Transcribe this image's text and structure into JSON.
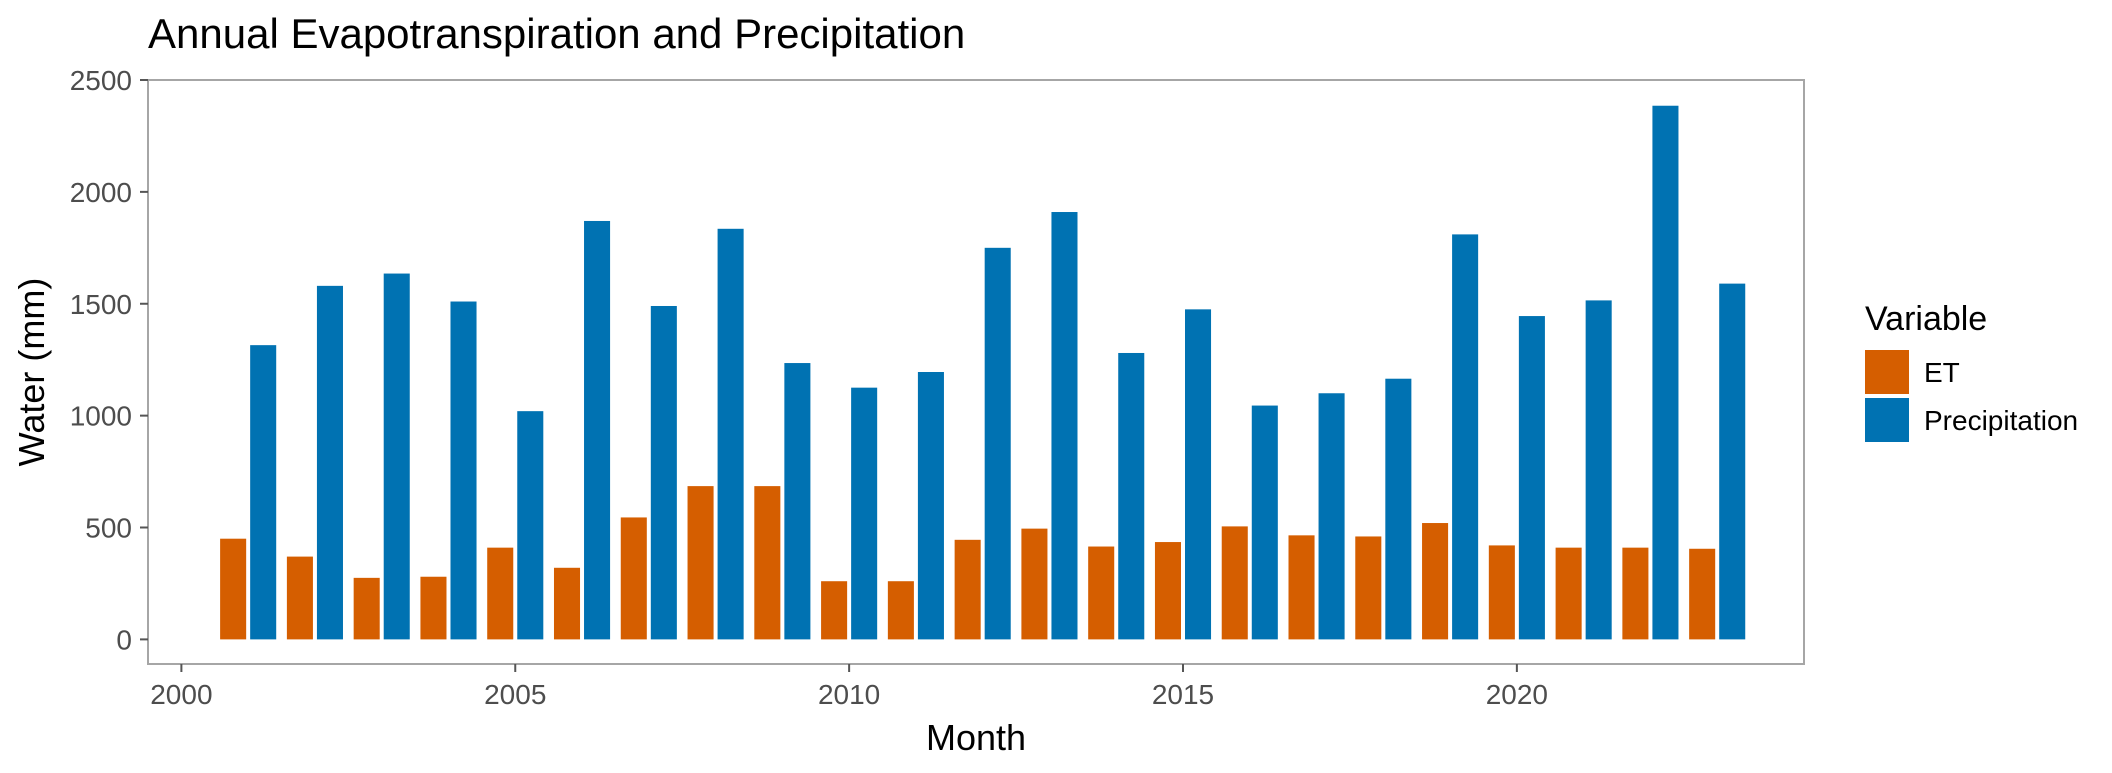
{
  "chart_data": {
    "type": "bar",
    "title": "Annual Evapotranspiration and Precipitation",
    "xlabel": "Month",
    "ylabel": "Water (mm)",
    "xlim": [
      1999.5,
      2024.3
    ],
    "ylim": [
      -110,
      2500
    ],
    "x_ticks": [
      2000,
      2005,
      2010,
      2015,
      2020
    ],
    "y_ticks": [
      0,
      500,
      1000,
      1500,
      2000,
      2500
    ],
    "grid": false,
    "legend_title": "Variable",
    "legend_position": "right",
    "categories": [
      2001,
      2002,
      2003,
      2004,
      2005,
      2006,
      2007,
      2008,
      2009,
      2010,
      2011,
      2012,
      2013,
      2014,
      2015,
      2016,
      2017,
      2018,
      2019,
      2020,
      2021,
      2022,
      2023
    ],
    "series": [
      {
        "name": "ET",
        "color": "#D55E00",
        "values": [
          450,
          370,
          275,
          280,
          410,
          320,
          545,
          685,
          685,
          260,
          260,
          445,
          495,
          415,
          435,
          505,
          465,
          460,
          520,
          420,
          410,
          410,
          405
        ]
      },
      {
        "name": "Precipitation",
        "color": "#0072B2",
        "values": [
          1315,
          1580,
          1635,
          1510,
          1020,
          1870,
          1490,
          1835,
          1235,
          1125,
          1195,
          1750,
          1910,
          1280,
          1475,
          1045,
          1100,
          1165,
          1810,
          1445,
          1515,
          2385,
          1590
        ]
      }
    ]
  }
}
